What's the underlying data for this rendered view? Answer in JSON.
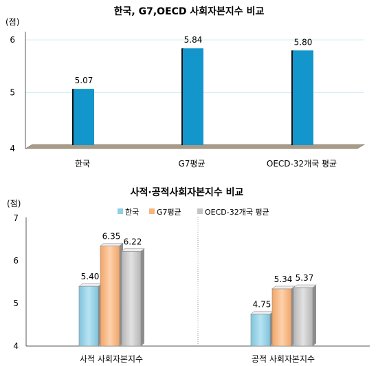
{
  "chart_data": [
    {
      "type": "bar",
      "title": "한국, G7,OECD 사회자본지수 비교",
      "unit": "(점)",
      "categories": [
        "한국",
        "G7평균",
        "OECD-32개국 평균"
      ],
      "values": [
        5.07,
        5.84,
        5.8
      ],
      "value_labels": [
        "5.07",
        "5.84",
        "5.80"
      ],
      "ylim": [
        4,
        6
      ],
      "yticks": [
        "4",
        "5",
        "6"
      ],
      "color": "#1396CB",
      "grid": true
    },
    {
      "type": "bar",
      "title": "사적·공적사회자본지수 비교",
      "unit": "(점)",
      "categories": [
        "사적 사회자본지수",
        "공적 사회자본지수"
      ],
      "series": [
        {
          "name": "한국",
          "values": [
            5.4,
            4.75
          ],
          "value_labels": [
            "5.40",
            "4.75"
          ],
          "color": "#8ECFE6"
        },
        {
          "name": "G7평균",
          "values": [
            6.35,
            5.34
          ],
          "value_labels": [
            "6.35",
            "5.34"
          ],
          "color": "#F7B57E"
        },
        {
          "name": "OECD-32개국 평균",
          "values": [
            6.22,
            5.37
          ],
          "value_labels": [
            "6.22",
            "5.37"
          ],
          "color": "#C4C4C4"
        }
      ],
      "ylim": [
        4,
        7
      ],
      "yticks": [
        "4",
        "5",
        "6",
        "7"
      ],
      "legend": "top"
    }
  ]
}
